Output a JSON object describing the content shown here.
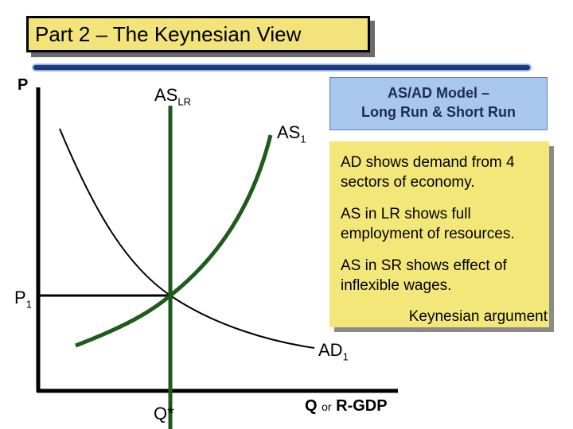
{
  "title": "Part 2 – The Keynesian View",
  "model_box": {
    "line1": "AS/AD Model –",
    "line2": "Long Run & Short Run"
  },
  "notes": [
    {
      "line1": "AD shows demand from 4",
      "line2": "sectors of economy."
    },
    {
      "line1": "AS in LR shows full",
      "line2": "employment of resources."
    },
    {
      "line1": "AS in SR shows effect of",
      "line2": "inflexible wages."
    }
  ],
  "argument": "Keynesian argument",
  "axes": {
    "y_label": "P",
    "x_label_q": "Q",
    "x_label_or": "or",
    "x_label_gdp": "R-GDP"
  },
  "curves": {
    "as_lr": {
      "main": "AS",
      "sub": "LR"
    },
    "as_sr": {
      "main": "AS",
      "sub": "1"
    },
    "ad": {
      "main": "AD",
      "sub": "1"
    }
  },
  "equilibrium": {
    "p_main": "P",
    "p_sub": "1",
    "q_label": "Q*"
  },
  "colors": {
    "supply_curve": "#1e5c1e",
    "demand_curve": "#000000",
    "axis": "#000000",
    "title_fill": "#f2e37a",
    "note_fill": "#f3e77a",
    "model_fill": "#a9c6ee"
  }
}
